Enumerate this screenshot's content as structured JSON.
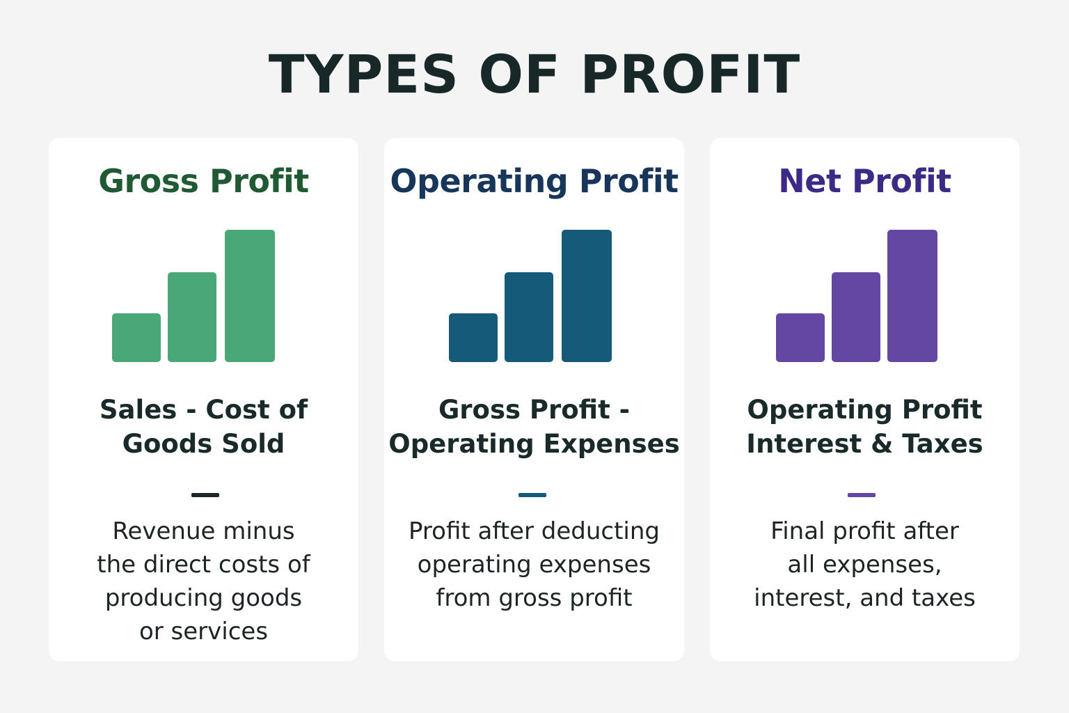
{
  "title": "TYPES OF PROFIT",
  "cards": [
    {
      "title": "Gross Profit",
      "title_color": "#1f5a35",
      "bar_color": "#4aa778",
      "bar_levels": [
        0.37,
        0.68,
        1.0
      ],
      "dash_color": "#1e2626",
      "formula_lines": [
        "Sales - Cost of",
        "Goods Sold"
      ],
      "description_lines": [
        "Revenue minus",
        "the direct costs of",
        "producing goods",
        "or services"
      ]
    },
    {
      "title": "Operating Profit",
      "title_color": "#18355a",
      "bar_color": "#155a78",
      "bar_levels": [
        0.37,
        0.68,
        1.0
      ],
      "dash_color": "#155a78",
      "formula_lines": [
        "Gross Profit -",
        "Operating Expenses"
      ],
      "description_lines": [
        "Profit after deducting",
        "operating expenses",
        "from gross profit"
      ]
    },
    {
      "title": "Net Profit",
      "title_color": "#3c2a86",
      "bar_color": "#6347a3",
      "bar_levels": [
        0.37,
        0.68,
        1.0
      ],
      "dash_color": "#6347a3",
      "formula_lines": [
        "Operating Profit",
        "Interest & Taxes"
      ],
      "description_lines": [
        "Final profit after",
        "all expenses,",
        "interest, and taxes"
      ]
    }
  ]
}
